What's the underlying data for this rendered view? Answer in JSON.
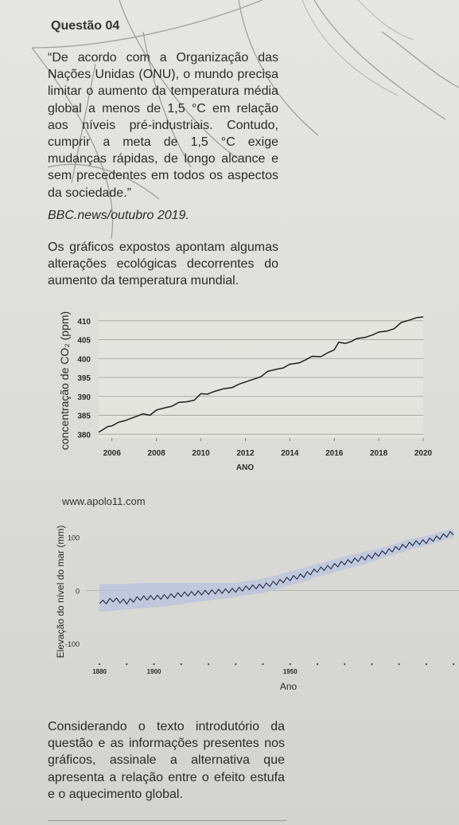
{
  "question": {
    "title": "Questão 04",
    "intro": "“De acordo com a Organização das Nações Unidas (ONU), o mundo precisa limitar o aumento da temperatura média global a menos de 1,5 °C em relação aos níveis pré-industriais. Contudo, cumprir a meta de 1,5 °C exige mudanças rápidas, de longo alcance e sem precedentes em todos os aspectos da sociedade.”",
    "source": "BBC.news/outubro 2019.",
    "paragraph2": "Os gráficos expostos apontam algumas alterações ecológicas decorrentes do aumento da temperatura mundial.",
    "website": "www.apolo11.com",
    "final": "Considerando o texto introdutório da questão e as informações presentes nos gráficos, assinale a alternativa que apresenta a relação entre o efeito estufa e o aquecimento global."
  },
  "chart_data": [
    {
      "type": "line",
      "xlabel": "ANO",
      "ylabel": "concentração de CO₂ (ppm)",
      "x_ticks": [
        "2006",
        "2008",
        "2010",
        "2012",
        "2014",
        "2016",
        "2018",
        "2020"
      ],
      "y_ticks": [
        "380",
        "385",
        "390",
        "395",
        "400",
        "405",
        "410"
      ],
      "xlim": [
        2005.4,
        2020
      ],
      "ylim": [
        379,
        411
      ],
      "grid": true,
      "x": [
        2005.4,
        2005.8,
        2006,
        2006.3,
        2006.6,
        2007,
        2007.4,
        2007.7,
        2008,
        2008.4,
        2008.7,
        2009,
        2009.4,
        2009.7,
        2010,
        2010.3,
        2010.6,
        2011,
        2011.4,
        2011.7,
        2012,
        2012.4,
        2012.7,
        2013,
        2013.4,
        2013.7,
        2014,
        2014.4,
        2014.7,
        2015,
        2015.4,
        2015.7,
        2016,
        2016.2,
        2016.5,
        2016.8,
        2017,
        2017.4,
        2017.7,
        2018,
        2018.4,
        2018.7,
        2019,
        2019.4,
        2019.7,
        2020
      ],
      "values": [
        380.5,
        382,
        382.2,
        383.2,
        383.6,
        384.5,
        385.4,
        385,
        386.4,
        387,
        387.4,
        388.4,
        388.6,
        389,
        390.7,
        390.6,
        391.3,
        392,
        392.3,
        393.2,
        393.8,
        394.6,
        395.2,
        396.6,
        397.2,
        397.5,
        398.5,
        398.8,
        399.6,
        400.6,
        400.5,
        401.5,
        402.3,
        404.3,
        404,
        404.6,
        405.3,
        405.6,
        406.2,
        407,
        407.3,
        407.9,
        409.5,
        410.2,
        410.8,
        411
      ]
    },
    {
      "type": "area",
      "xlabel": "Ano",
      "ylabel": "Elevação do nível do mar (mm)",
      "x_ticks": [
        "1880",
        "1900",
        "1950"
      ],
      "y_ticks": [
        "100",
        "0",
        "-100"
      ],
      "xlim": [
        1875,
        2012
      ],
      "ylim": [
        -130,
        125
      ],
      "grid": false,
      "x": [
        1880,
        1885,
        1890,
        1895,
        1900,
        1905,
        1910,
        1915,
        1920,
        1925,
        1930,
        1935,
        1940,
        1945,
        1950,
        1955,
        1960,
        1965,
        1970,
        1975,
        1980,
        1985,
        1990,
        1995,
        2000,
        2005,
        2010
      ],
      "values": [
        -25,
        -18,
        -22,
        -15,
        -14,
        -12,
        -8,
        -6,
        -4,
        -2,
        0,
        5,
        8,
        14,
        22,
        28,
        38,
        44,
        52,
        58,
        64,
        72,
        80,
        88,
        92,
        100,
        108
      ],
      "lower": [
        -40,
        -38,
        -36,
        -34,
        -32,
        -30,
        -26,
        -22,
        -19,
        -16,
        -13,
        -8,
        -5,
        2,
        10,
        16,
        26,
        32,
        40,
        46,
        54,
        62,
        70,
        78,
        84,
        92,
        100
      ],
      "upper": [
        12,
        12,
        12,
        14,
        14,
        14,
        14,
        14,
        14,
        14,
        14,
        18,
        22,
        28,
        36,
        42,
        50,
        56,
        64,
        70,
        76,
        82,
        90,
        98,
        102,
        110,
        116
      ]
    }
  ]
}
